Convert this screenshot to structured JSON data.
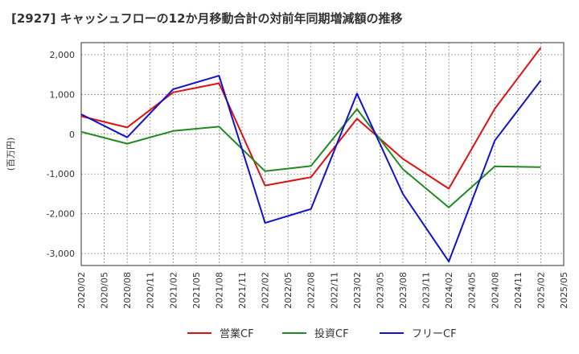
{
  "chart_data": {
    "type": "line",
    "title": "[2927]  キャッシュフローの12か月移動合計の対前年同期増減額の推移",
    "ylabel": "(百万円)",
    "xlabel": "",
    "ylim": [
      -3300,
      2300
    ],
    "yticks": [
      2000,
      1000,
      0,
      -1000,
      -2000,
      -3000
    ],
    "ytick_labels": [
      "2,000",
      "1,000",
      "0",
      "-1,000",
      "-2,000",
      "-3,000"
    ],
    "x": [
      "2020/02",
      "2020/05",
      "2020/08",
      "2020/11",
      "2021/02",
      "2021/05",
      "2021/08",
      "2021/11",
      "2022/02",
      "2022/05",
      "2022/08",
      "2022/11",
      "2023/02",
      "2023/05",
      "2023/08",
      "2023/11",
      "2024/02",
      "2024/05",
      "2024/08",
      "2024/11",
      "2025/02",
      "2025/05"
    ],
    "grid": true,
    "legend_position": "bottom",
    "series": [
      {
        "name": "営業CF",
        "color": "#dd1111",
        "values": [
          450,
          null,
          170,
          null,
          1050,
          null,
          1280,
          null,
          -1290,
          null,
          -1080,
          null,
          390,
          null,
          -620,
          null,
          -1370,
          null,
          640,
          null,
          2170,
          null
        ]
      },
      {
        "name": "投資CF",
        "color": "#228822",
        "values": [
          60,
          null,
          -240,
          null,
          80,
          null,
          190,
          null,
          -930,
          null,
          -800,
          null,
          630,
          null,
          -880,
          null,
          -1840,
          null,
          -810,
          null,
          -830,
          null
        ]
      },
      {
        "name": "フリーCF",
        "color": "#1111cc",
        "values": [
          500,
          null,
          -80,
          null,
          1130,
          null,
          1470,
          null,
          -2230,
          null,
          -1880,
          null,
          1020,
          null,
          -1500,
          null,
          -3200,
          null,
          -160,
          null,
          1350,
          null
        ]
      }
    ]
  }
}
